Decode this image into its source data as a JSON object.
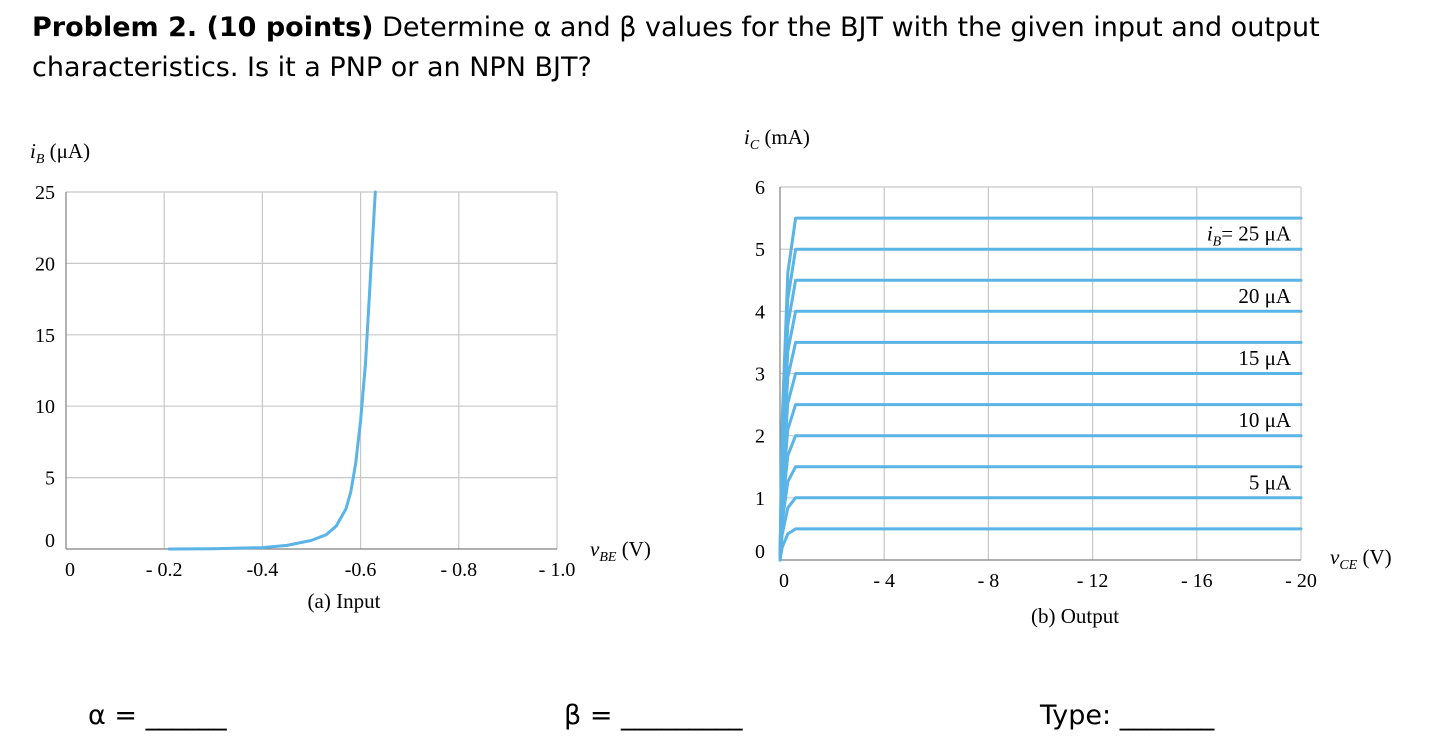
{
  "problem": {
    "heading": "Problem 2. (10 points)",
    "body": "Determine α and β values for the BJT with the given input and output characteristics. Is it a PNP or an NPN BJT?"
  },
  "answers": {
    "alpha": "α  =  ______",
    "beta": "β  =  _________",
    "type": "Type: _______"
  },
  "colors": {
    "curve": "#5ab4e5",
    "grid": "#c8c8c8"
  },
  "chart_data": [
    {
      "type": "line",
      "caption": "(a) Input",
      "ylabel_var": "i",
      "ylabel_sub": "B",
      "ylabel_unit": " (μA)",
      "xlabel_var": "v",
      "xlabel_sub": "BE",
      "xlabel_unit": " (V)",
      "xlim": [
        0,
        -1.0
      ],
      "ylim": [
        0,
        25
      ],
      "x_ticks": [
        0,
        -0.2,
        -0.4,
        -0.6,
        -0.8,
        -1.0
      ],
      "x_tick_labels": [
        "0",
        "- 0.2",
        "-0.4",
        "-0.6",
        "- 0.8",
        "- 1.0"
      ],
      "y_ticks": [
        0,
        5,
        10,
        15,
        20,
        25
      ],
      "y_tick_labels": [
        "0",
        "5",
        "10",
        "15",
        "20",
        "25"
      ],
      "grid": true,
      "series": [
        {
          "x": [
            -0.21,
            -0.3,
            -0.4,
            -0.45,
            -0.5,
            -0.53,
            -0.55,
            -0.57,
            -0.58,
            -0.59,
            -0.6,
            -0.61,
            -0.62,
            -0.63
          ],
          "y": [
            0,
            0.02,
            0.1,
            0.25,
            0.6,
            1.0,
            1.6,
            2.8,
            4.0,
            6.0,
            9.0,
            13.0,
            19.0,
            25.0
          ]
        }
      ]
    },
    {
      "type": "line",
      "caption": "(b) Output",
      "ylabel_var": "i",
      "ylabel_sub": "C",
      "ylabel_unit": " (mA)",
      "xlabel_var": "v",
      "xlabel_sub": "CE",
      "xlabel_unit": " (V)",
      "xlim": [
        0,
        -20
      ],
      "ylim": [
        0,
        6
      ],
      "x_ticks": [
        0,
        -4,
        -8,
        -12,
        -16,
        -20
      ],
      "x_tick_labels": [
        "0",
        "- 4",
        "- 8",
        "- 12",
        "- 16",
        "- 20"
      ],
      "y_ticks": [
        0,
        1,
        2,
        3,
        4,
        5,
        6
      ],
      "y_tick_labels": [
        "0",
        "1",
        "2",
        "3",
        "4",
        "5",
        "6"
      ],
      "grid": true,
      "series": [
        {
          "x": [
            0,
            -0.08,
            -0.3,
            -0.6,
            -1.0,
            -20
          ],
          "y": [
            0,
            0.2,
            0.42,
            0.5,
            0.5,
            0.5
          ]
        },
        {
          "x": [
            0,
            -0.08,
            -0.3,
            -0.6,
            -1.0,
            -20
          ],
          "y": [
            0,
            0.4,
            0.84,
            1.0,
            1.0,
            1.0
          ]
        },
        {
          "x": [
            0,
            -0.08,
            -0.3,
            -0.6,
            -1.0,
            -20
          ],
          "y": [
            0,
            0.6,
            1.26,
            1.5,
            1.5,
            1.5
          ]
        },
        {
          "x": [
            0,
            -0.08,
            -0.3,
            -0.6,
            -1.0,
            -20
          ],
          "y": [
            0,
            0.8,
            1.68,
            2.0,
            2.0,
            2.0
          ]
        },
        {
          "x": [
            0,
            -0.08,
            -0.3,
            -0.6,
            -1.0,
            -20
          ],
          "y": [
            0,
            1.0,
            2.1,
            2.5,
            2.5,
            2.5
          ]
        },
        {
          "x": [
            0,
            -0.08,
            -0.3,
            -0.6,
            -1.0,
            -20
          ],
          "y": [
            0,
            1.2,
            2.52,
            3.0,
            3.0,
            3.0
          ]
        },
        {
          "x": [
            0,
            -0.08,
            -0.3,
            -0.6,
            -1.0,
            -20
          ],
          "y": [
            0,
            1.4,
            2.94,
            3.5,
            3.5,
            3.5
          ]
        },
        {
          "x": [
            0,
            -0.08,
            -0.3,
            -0.6,
            -1.0,
            -20
          ],
          "y": [
            0,
            1.6,
            3.36,
            4.0,
            4.0,
            4.0
          ]
        },
        {
          "x": [
            0,
            -0.08,
            -0.3,
            -0.6,
            -1.0,
            -20
          ],
          "y": [
            0,
            1.8,
            3.78,
            4.5,
            4.5,
            4.5
          ]
        },
        {
          "x": [
            0,
            -0.08,
            -0.3,
            -0.6,
            -1.0,
            -20
          ],
          "y": [
            0,
            2.0,
            4.2,
            5.0,
            5.0,
            5.0
          ]
        },
        {
          "x": [
            0,
            -0.08,
            -0.3,
            -0.6,
            -1.0,
            -20
          ],
          "y": [
            0,
            2.2,
            4.62,
            5.5,
            5.5,
            5.5
          ]
        }
      ],
      "annotations": [
        {
          "var": "i",
          "sub": "B",
          "text": "= 25 μA",
          "x": -20,
          "y": 5.25
        },
        {
          "var": "",
          "sub": "",
          "text": "20 μA",
          "x": -20,
          "y": 4.25
        },
        {
          "var": "",
          "sub": "",
          "text": "15 μA",
          "x": -20,
          "y": 3.25
        },
        {
          "var": "",
          "sub": "",
          "text": "10 μA",
          "x": -20,
          "y": 2.25
        },
        {
          "var": "",
          "sub": "",
          "text": "5 μA",
          "x": -20,
          "y": 1.25
        }
      ]
    }
  ]
}
